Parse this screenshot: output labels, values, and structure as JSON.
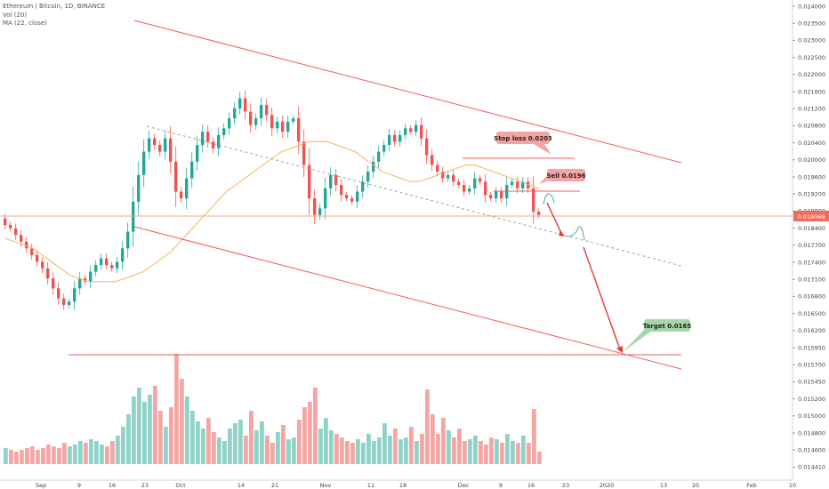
{
  "header": {
    "title": "Ethereum / Bitcoin, 1D, BINANCE",
    "vol": "Vol (20)",
    "ma": "MA (22, close)"
  },
  "chart_data": {
    "type": "candlestick",
    "y_ticks": [
      "0.024000",
      "0.023500",
      "0.023000",
      "0.022500",
      "0.022000",
      "0.021600",
      "0.021200",
      "0.020800",
      "0.020400",
      "0.020000",
      "0.019600",
      "0.019200",
      "0.018800",
      "0.018400",
      "0.017700",
      "0.017400",
      "0.017100",
      "0.016800",
      "0.016500",
      "0.016200",
      "0.015950",
      "0.015700",
      "0.015450",
      "0.015200",
      "0.015000",
      "0.014800",
      "0.014600",
      "0.014410"
    ],
    "x_ticks": [
      "Sep",
      "9",
      "16",
      "23",
      "Oct",
      "14",
      "21",
      "Nov",
      "11",
      "18",
      "Dec",
      "9",
      "16",
      "23",
      "2020",
      "13",
      "20",
      "Feb",
      "10"
    ],
    "last_price": "0.019069",
    "annotations": {
      "stop_loss": "Stop loss 0.0203",
      "sell": "Sell 0.0196",
      "target": "Target 0.0165"
    },
    "close_series_approx": [
      0.0188,
      0.0187,
      0.0185,
      0.0183,
      0.0181,
      0.0179,
      0.0177,
      0.0175,
      0.0172,
      0.0169,
      0.0166,
      0.0164,
      0.0165,
      0.0169,
      0.0172,
      0.0171,
      0.0174,
      0.0176,
      0.0178,
      0.0176,
      0.0175,
      0.0177,
      0.0181,
      0.0186,
      0.0195,
      0.0203,
      0.021,
      0.0214,
      0.0212,
      0.021,
      0.0214,
      0.0207,
      0.0198,
      0.0196,
      0.0202,
      0.0207,
      0.0212,
      0.0216,
      0.0213,
      0.0211,
      0.0215,
      0.0217,
      0.022,
      0.0223,
      0.0226,
      0.0222,
      0.0218,
      0.022,
      0.0224,
      0.0221,
      0.0217,
      0.0219,
      0.0216,
      0.0219,
      0.022,
      0.0213,
      0.0206,
      0.0196,
      0.0191,
      0.0193,
      0.0199,
      0.0203,
      0.02,
      0.0197,
      0.0196,
      0.0195,
      0.0198,
      0.0201,
      0.0204,
      0.0207,
      0.021,
      0.0212,
      0.0215,
      0.0213,
      0.0215,
      0.0217,
      0.0216,
      0.0218,
      0.0214,
      0.0209,
      0.0206,
      0.0204,
      0.0202,
      0.0203,
      0.0201,
      0.02,
      0.0198,
      0.0199,
      0.0202,
      0.0201,
      0.0197,
      0.0196,
      0.0198,
      0.0196,
      0.02,
      0.0201,
      0.0199,
      0.0201,
      0.0199,
      0.0192,
      0.0191
    ],
    "ma_series_approx": [
      0.0184,
      0.0183,
      0.0182,
      0.0181,
      0.0179,
      0.0177,
      0.0175,
      0.0173,
      0.0172,
      0.0171,
      0.0171,
      0.0171,
      0.0171,
      0.0172,
      0.0173,
      0.0174,
      0.0176,
      0.0178,
      0.018,
      0.0183,
      0.0186,
      0.0189,
      0.0192,
      0.0195,
      0.0198,
      0.02,
      0.0202,
      0.0204,
      0.0206,
      0.0208,
      0.021,
      0.0211,
      0.0212,
      0.0213,
      0.0213,
      0.0213,
      0.0212,
      0.0211,
      0.021,
      0.0208,
      0.0206,
      0.0204,
      0.0203,
      0.0202,
      0.0201,
      0.0201,
      0.0202,
      0.0203,
      0.0204,
      0.0205,
      0.0206,
      0.0206,
      0.0205,
      0.0204,
      0.0203,
      0.0202,
      0.0201,
      0.02,
      0.0199
    ],
    "volume_approx": [
      0.9,
      0.8,
      0.7,
      0.8,
      0.9,
      1.0,
      0.8,
      0.9,
      1.1,
      1.0,
      0.9,
      1.2,
      1.0,
      1.1,
      1.3,
      1.2,
      1.4,
      1.3,
      1.1,
      1.0,
      1.3,
      1.6,
      2.1,
      2.8,
      3.8,
      4.3,
      3.5,
      3.9,
      4.4,
      3.0,
      2.1,
      3.2,
      6.2,
      4.8,
      3.8,
      3.0,
      2.4,
      2.0,
      2.6,
      1.8,
      1.5,
      1.3,
      2.0,
      2.3,
      2.5,
      1.6,
      3.0,
      1.9,
      2.4,
      1.6,
      1.2,
      1.8,
      2.2,
      1.4,
      1.5,
      2.5,
      3.2,
      3.5,
      4.3,
      2.0,
      2.6,
      1.9,
      1.7,
      1.5,
      1.3,
      1.2,
      1.4,
      1.2,
      1.7,
      1.3,
      1.5,
      2.3,
      1.6,
      2.0,
      1.4,
      1.5,
      2.1,
      1.3,
      1.7,
      4.2,
      2.8,
      1.7,
      2.6,
      1.9,
      1.5,
      2.0,
      1.3,
      1.4,
      1.6,
      1.3,
      1.1,
      1.5,
      1.4,
      1.2,
      1.7,
      1.3,
      1.2,
      1.6,
      1.2,
      3.1,
      0.7
    ]
  }
}
